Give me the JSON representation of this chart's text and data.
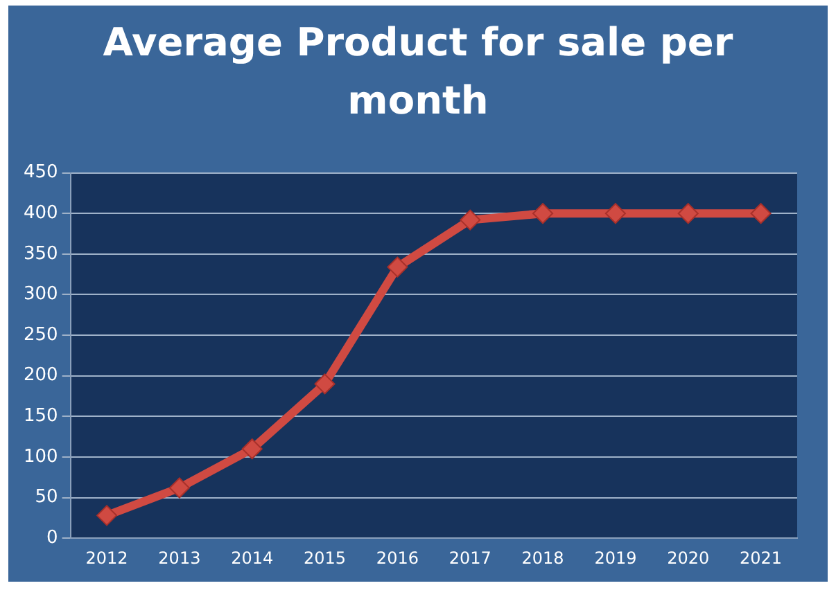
{
  "chart_data": {
    "type": "line",
    "title": "Average Product for sale per month",
    "categories": [
      "2012",
      "2013",
      "2014",
      "2015",
      "2016",
      "2017",
      "2018",
      "2019",
      "2020",
      "2021"
    ],
    "series": [
      {
        "color": "#d04a42",
        "values": [
          28,
          62,
          110,
          190,
          334,
          392,
          400,
          400,
          400,
          400
        ]
      }
    ],
    "ylim": [
      0,
      450
    ],
    "yticks": [
      0,
      50,
      100,
      150,
      200,
      250,
      300,
      350,
      400,
      450
    ],
    "grid": "y",
    "legend": false,
    "marker": "diamond",
    "line_style": "solid"
  }
}
